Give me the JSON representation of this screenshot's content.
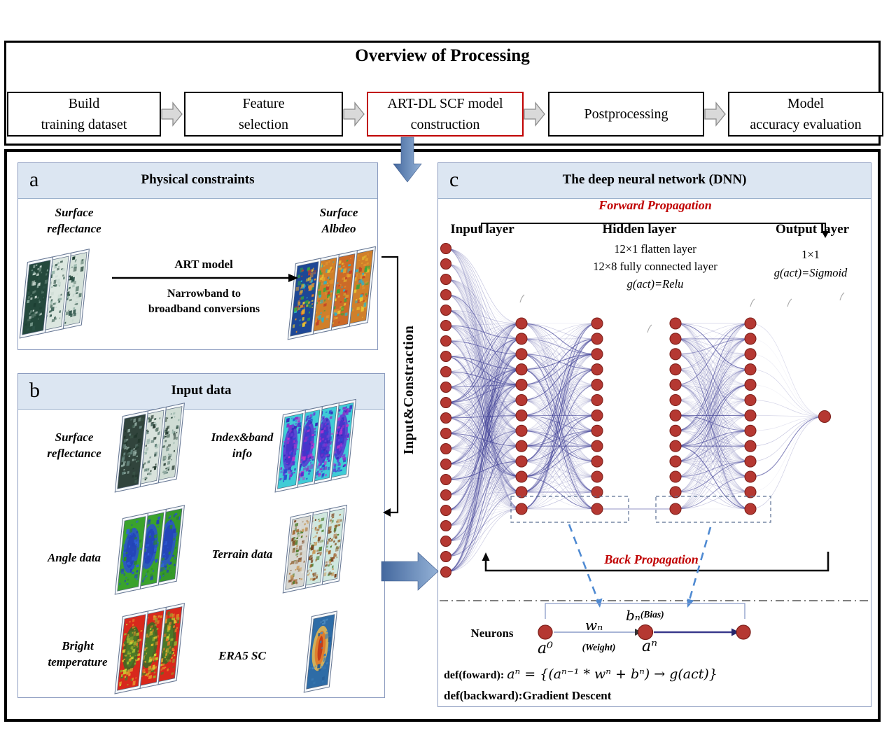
{
  "colors": {
    "accent_red": "#c00000",
    "neuron": "#b53832",
    "neuron_stroke": "#7e211c",
    "edge": "#3c3c94",
    "header_bg": "#dce6f2",
    "panel_border": "#8c9cc0",
    "dashed_blue": "#4f8ad2",
    "gray_arrow_fill": "#d9d9d9",
    "gray_arrow_stroke": "#8c8c8c",
    "fat_arrow_dark": "#44689e",
    "fat_arrow_light": "#93b1d6"
  },
  "overview": {
    "title": "Overview of Processing",
    "steps": [
      {
        "label": "Build\ntraining dataset",
        "highlighted": false
      },
      {
        "label": "Feature\nselection",
        "highlighted": false
      },
      {
        "label": "ART-DL SCF model\nconstruction",
        "highlighted": true
      },
      {
        "label": "Postprocessing",
        "highlighted": false
      },
      {
        "label": "Model\naccuracy evaluation",
        "highlighted": false
      }
    ]
  },
  "panel_a": {
    "tag": "a",
    "title": "Physical constraints",
    "left_stack_label": "Surface\nreflectance",
    "arrow_top_label": "ART model",
    "arrow_bottom_label": "Narrowband to\nbroadband conversions",
    "right_stack_label": "Surface\nAlbdeo"
  },
  "connector": {
    "label": "Input&Constraction"
  },
  "panel_b": {
    "tag": "b",
    "title": "Input data",
    "items": [
      {
        "label": "Surface\nreflectance"
      },
      {
        "label": "Index&band\ninfo"
      },
      {
        "label": "Angle data"
      },
      {
        "label": "Terrain data"
      },
      {
        "label": "Bright\ntemperature"
      },
      {
        "label": "ERA5 SC"
      }
    ]
  },
  "panel_c": {
    "tag": "c",
    "title": "The deep neural network (DNN)",
    "forward_label": "Forward Propagation",
    "back_label": "Back Propagation",
    "input_layer_label": "Input layer",
    "hidden_layer_label": "Hidden layer",
    "hidden_notes": [
      "12×1 flatten layer",
      "12×8 fully connected layer",
      "g(act)=Relu"
    ],
    "output_layer_label": "Output layer",
    "output_notes": [
      "1×1",
      "g(act)=Sigmoid"
    ],
    "network": {
      "input_neurons": 22,
      "hidden_columns": 4,
      "neurons_per_hidden_column": 12,
      "extra_neuron_per_column": 1,
      "output_neurons": 1
    },
    "neuron_diagram": {
      "label": "Neurons",
      "a0": "a⁰",
      "weight_var": "wₙ",
      "weight_note": "(Weight)",
      "bias_var": "bₙ",
      "bias_note": "(Bias)",
      "an": "aⁿ"
    },
    "def_forward_prefix": "def(foward):",
    "def_forward_formula": "aⁿ = {(aⁿ⁻¹ * wⁿ + bⁿ) → g(act)}",
    "def_backward": "def(backward):Gradient Descent"
  },
  "stacks": {
    "a_reflectance": {
      "count": 3,
      "bases": [
        "#24493c",
        "#dce7e0",
        "#d5e2da"
      ],
      "speckles": [
        "#1d3f33",
        "#58796c",
        "#8fb0a4",
        "#c8d8d0",
        "#2c5348"
      ],
      "density": 65
    },
    "a_albedo": {
      "count": 4,
      "bases": [
        "#1d4796",
        "#d07f2a",
        "#cc6a28",
        "#d07f2a"
      ],
      "speckles": [
        "#e5a62e",
        "#c33f28",
        "#35a83c",
        "#e8c832",
        "#2bb3c8",
        "#e09030"
      ],
      "density": 80
    },
    "b_reflectance": {
      "count": 3,
      "bases": [
        "#31443c",
        "#d8e2dc",
        "#cfdcd4"
      ],
      "speckles": [
        "#21362c",
        "#63827a",
        "#9cb8ae",
        "#3c5a4c"
      ],
      "density": 65
    },
    "b_index": {
      "count": 4,
      "bases": [
        "#3fccd6",
        "#3fccd6",
        "#3fccd6",
        "#3fccd6"
      ],
      "speckles": [
        "#4a38d0",
        "#3028b8",
        "#c032cc",
        "#6a40d8",
        "#2a48d0",
        "#8a30c8"
      ],
      "density": 95,
      "blob": {
        "colors": [
          "#5a3ad0",
          "#4830c8"
        ]
      }
    },
    "b_angle": {
      "count": 3,
      "bases": [
        "#3aa32c",
        "#3aa32c",
        "#35992a"
      ],
      "speckles": [
        "#2a52cc",
        "#2343b8",
        "#3060d8",
        "#2a8a2a"
      ],
      "density": 55,
      "blob": {
        "colors": [
          "#2a52cc",
          "#2343b8"
        ]
      }
    },
    "b_terrain": {
      "count": 3,
      "bases": [
        "#d6d6d0",
        "#cfe7df",
        "#cfe7df"
      ],
      "speckles": [
        "#7a431c",
        "#a0622a",
        "#4a7a2a",
        "#c89a5a",
        "#8a5a2a",
        "#e0e0da"
      ],
      "density": 80
    },
    "b_bright": {
      "count": 3,
      "bases": [
        "#d8281c",
        "#d8281c",
        "#d8281c"
      ],
      "speckles": [
        "#e2b82e",
        "#4a7a28",
        "#e07828",
        "#98b02c",
        "#c8d832",
        "#e8a030"
      ],
      "density": 85,
      "blob": {
        "colors": [
          "#3a6a24",
          "#4a7a28"
        ]
      }
    },
    "b_era5": {
      "count": 1,
      "bases": [
        "#2e6ca6"
      ],
      "speckles": [
        "#3a7ab2",
        "#255c92",
        "#4a8ac0"
      ],
      "density": 30,
      "blob": {
        "colors": [
          "#e8b850",
          "#e07828",
          "#c03418"
        ]
      }
    }
  }
}
